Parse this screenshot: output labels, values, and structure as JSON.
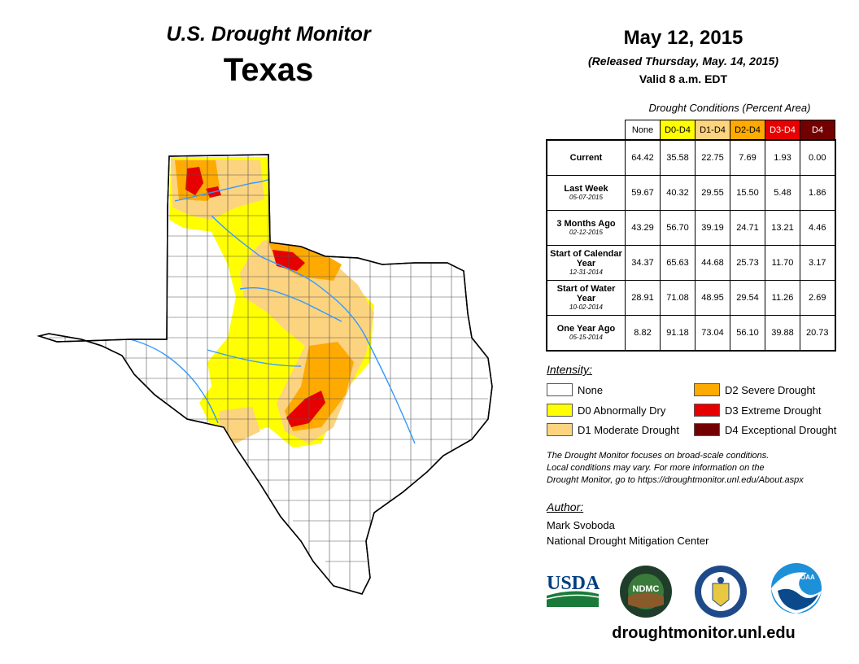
{
  "header": {
    "brand": "U.S. Drought Monitor",
    "state": "Texas",
    "date": "May 12, 2015",
    "released": "(Released Thursday, May. 14, 2015)",
    "valid": "Valid 8 a.m. EDT"
  },
  "table": {
    "title": "Drought Conditions (Percent Area)",
    "columns": [
      {
        "label": "None",
        "color": "#ffffff",
        "text_color": "#000000"
      },
      {
        "label": "D0-D4",
        "color": "#ffff00",
        "text_color": "#000000"
      },
      {
        "label": "D1-D4",
        "color": "#fcd37f",
        "text_color": "#000000"
      },
      {
        "label": "D2-D4",
        "color": "#ffaa00",
        "text_color": "#000000"
      },
      {
        "label": "D3-D4",
        "color": "#e60000",
        "text_color": "#ffffff"
      },
      {
        "label": "D4",
        "color": "#730000",
        "text_color": "#ffffff"
      }
    ],
    "rows": [
      {
        "label": "Current",
        "sublabel": "",
        "values": [
          "64.42",
          "35.58",
          "22.75",
          "7.69",
          "1.93",
          "0.00"
        ]
      },
      {
        "label": "Last Week",
        "sublabel": "05-07-2015",
        "values": [
          "59.67",
          "40.32",
          "29.55",
          "15.50",
          "5.48",
          "1.86"
        ]
      },
      {
        "label": "3 Months Ago",
        "sublabel": "02-12-2015",
        "values": [
          "43.29",
          "56.70",
          "39.19",
          "24.71",
          "13.21",
          "4.46"
        ]
      },
      {
        "label": "Start of Calendar Year",
        "sublabel": "12-31-2014",
        "values": [
          "34.37",
          "65.63",
          "44.68",
          "25.73",
          "11.70",
          "3.17"
        ]
      },
      {
        "label": "Start of Water Year",
        "sublabel": "10-02-2014",
        "values": [
          "28.91",
          "71.08",
          "48.95",
          "29.54",
          "11.26",
          "2.69"
        ]
      },
      {
        "label": "One Year Ago",
        "sublabel": "05-15-2014",
        "values": [
          "8.82",
          "91.18",
          "73.04",
          "56.10",
          "39.88",
          "20.73"
        ]
      }
    ]
  },
  "legend": {
    "title": "Intensity:",
    "items": [
      {
        "label": "None",
        "color": "#ffffff"
      },
      {
        "label": "D0 Abnormally Dry",
        "color": "#ffff00"
      },
      {
        "label": "D1 Moderate Drought",
        "color": "#fcd37f"
      },
      {
        "label": "D2 Severe Drought",
        "color": "#ffaa00"
      },
      {
        "label": "D3 Extreme Drought",
        "color": "#e60000"
      },
      {
        "label": "D4 Exceptional Drought",
        "color": "#730000"
      }
    ]
  },
  "note": {
    "line1": "The Drought Monitor focuses on broad-scale conditions.",
    "line2": "Local conditions may vary. For more information on the",
    "line3": "Drought Monitor, go to https://droughtmonitor.unl.edu/About.aspx"
  },
  "author": {
    "title": "Author:",
    "name": "Mark Svoboda",
    "org": "National Drought Mitigation Center"
  },
  "logos": {
    "usda": "USDA",
    "ndmc": "NDMC",
    "noaa": "NOAA"
  },
  "footer": {
    "site": "droughtmonitor.unl.edu"
  },
  "colors": {
    "river": "#3399ff",
    "county_line": "#555555"
  }
}
